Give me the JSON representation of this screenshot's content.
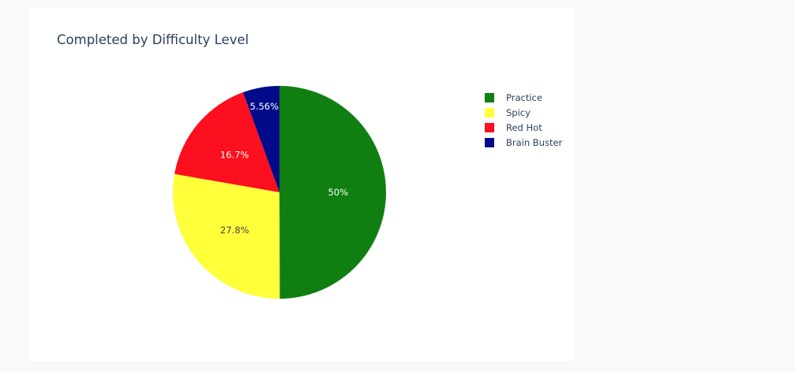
{
  "chart_data": {
    "type": "pie",
    "title": "Completed by Difficulty Level",
    "categories": [
      "Practice",
      "Spicy",
      "Red Hot",
      "Brain Buster"
    ],
    "values": [
      50,
      27.8,
      16.7,
      5.56
    ],
    "labels": [
      "50%",
      "27.8%",
      "16.7%",
      "5.56%"
    ],
    "colors": [
      "#0f7f12",
      "#ffff3a",
      "#fc0f1e",
      "#010b8a"
    ],
    "label_colors": [
      "#ffffff",
      "#444444",
      "#ffffff",
      "#ffffff"
    ],
    "legend_placement": "right",
    "direction": "clockwise",
    "start": "top"
  }
}
